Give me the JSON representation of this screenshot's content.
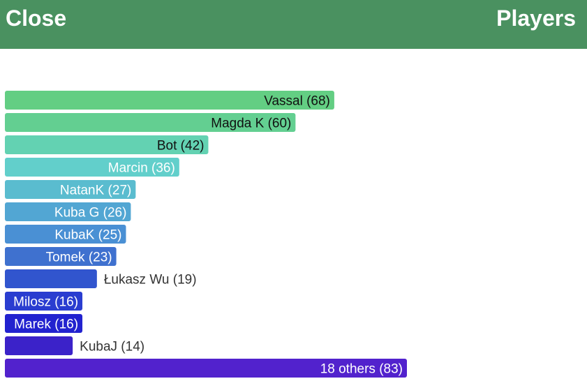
{
  "header": {
    "close_label": "Close",
    "title": "Players"
  },
  "colors": {
    "header_bg": "#4a9160",
    "header_text": "#ffffff"
  },
  "chart_data": {
    "type": "bar",
    "orientation": "horizontal",
    "xlim": [
      0,
      83
    ],
    "series": [
      {
        "values": [
          68,
          60,
          42,
          36,
          27,
          26,
          25,
          23,
          19,
          16,
          16,
          14,
          83
        ],
        "labels": [
          "Vassal  (68)",
          "Magda K (60)",
          "Bot (42)",
          "Marcin (36)",
          "NatanK (27)",
          "Kuba G (26)",
          "KubaK (25)",
          "Tomek (23)",
          "Łukasz Wu (19)",
          "Milosz (16)",
          "Marek (16)",
          "KubaJ      (14)",
          "18 others (83)"
        ],
        "colors": [
          "#63ce83",
          "#63cf91",
          "#63d2b2",
          "#62cfcb",
          "#5abccf",
          "#52a6d3",
          "#4a90d4",
          "#3f71cf",
          "#3155ce",
          "#2a3dd0",
          "#2222cf",
          "#3b22c9",
          "#5222cd"
        ]
      }
    ]
  }
}
